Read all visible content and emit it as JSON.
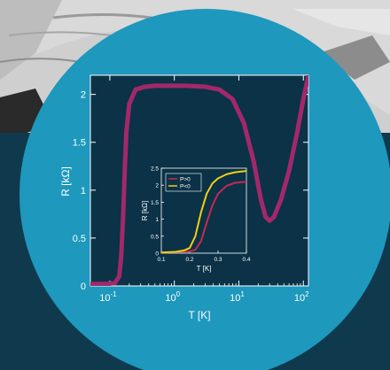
{
  "colors": {
    "page_background": "#0f3a4d",
    "photo_light": "#d9d9d9",
    "photo_dark": "#2a2a2a",
    "circle": "#1e98bd",
    "plot_background": "#0b3247",
    "axis_text": "#ffffff",
    "main_curve": "#a3286b",
    "inset_series_1": "#c42a53",
    "inset_series_2": "#f2cf16"
  },
  "chart_data": [
    {
      "type": "line",
      "xlabel": "T [K]",
      "ylabel": "R [kΩ]",
      "xscale": "log",
      "xlim": [
        0.05,
        120
      ],
      "ylim": [
        0,
        2.2
      ],
      "xticks": [
        {
          "value": 0.1,
          "base": "10",
          "exp": "-1"
        },
        {
          "value": 1,
          "base": "10",
          "exp": "0"
        },
        {
          "value": 10,
          "base": "10",
          "exp": "1"
        },
        {
          "value": 100,
          "base": "10",
          "exp": "2"
        }
      ],
      "yticks": [
        {
          "value": 0,
          "label": "0"
        },
        {
          "value": 0.5,
          "label": "0.5"
        },
        {
          "value": 1,
          "label": "1"
        },
        {
          "value": 1.5,
          "label": "1.5"
        },
        {
          "value": 2,
          "label": "2"
        }
      ],
      "grid": false,
      "series": [
        {
          "x": [
            0.05,
            0.09,
            0.12,
            0.14,
            0.15,
            0.16,
            0.17,
            0.18,
            0.2,
            0.25,
            0.35,
            0.5,
            0.8,
            1.5,
            3,
            5,
            8,
            12,
            17,
            22,
            26,
            30,
            35,
            45,
            60,
            80,
            100,
            120
          ],
          "y": [
            0.02,
            0.02,
            0.03,
            0.1,
            0.3,
            0.7,
            1.2,
            1.6,
            1.9,
            2.05,
            2.08,
            2.09,
            2.09,
            2.09,
            2.08,
            2.05,
            1.95,
            1.7,
            1.3,
            0.9,
            0.72,
            0.68,
            0.72,
            0.9,
            1.2,
            1.6,
            1.95,
            2.2
          ]
        }
      ]
    },
    {
      "type": "line",
      "xlabel": "T [K]",
      "ylabel": "R [kΩ]",
      "xlim": [
        0.1,
        0.4
      ],
      "ylim": [
        0,
        2.5
      ],
      "xticks": [
        "0.1",
        "0.2",
        "0.3",
        "0.4"
      ],
      "yticks": [
        "0",
        "0.5",
        "1",
        "1.5",
        "2",
        "2.5"
      ],
      "legend": "top-left",
      "series": [
        {
          "name": "P>0",
          "x": [
            0.1,
            0.15,
            0.2,
            0.22,
            0.24,
            0.26,
            0.28,
            0.3,
            0.33,
            0.36,
            0.4
          ],
          "y": [
            0.02,
            0.03,
            0.05,
            0.1,
            0.35,
            0.9,
            1.4,
            1.75,
            1.98,
            2.07,
            2.1
          ]
        },
        {
          "name": "P<0",
          "x": [
            0.1,
            0.15,
            0.18,
            0.2,
            0.22,
            0.24,
            0.26,
            0.28,
            0.3,
            0.33,
            0.36,
            0.4
          ],
          "y": [
            0.02,
            0.04,
            0.08,
            0.15,
            0.5,
            1.2,
            1.75,
            2.05,
            2.2,
            2.32,
            2.38,
            2.42
          ]
        }
      ]
    }
  ]
}
